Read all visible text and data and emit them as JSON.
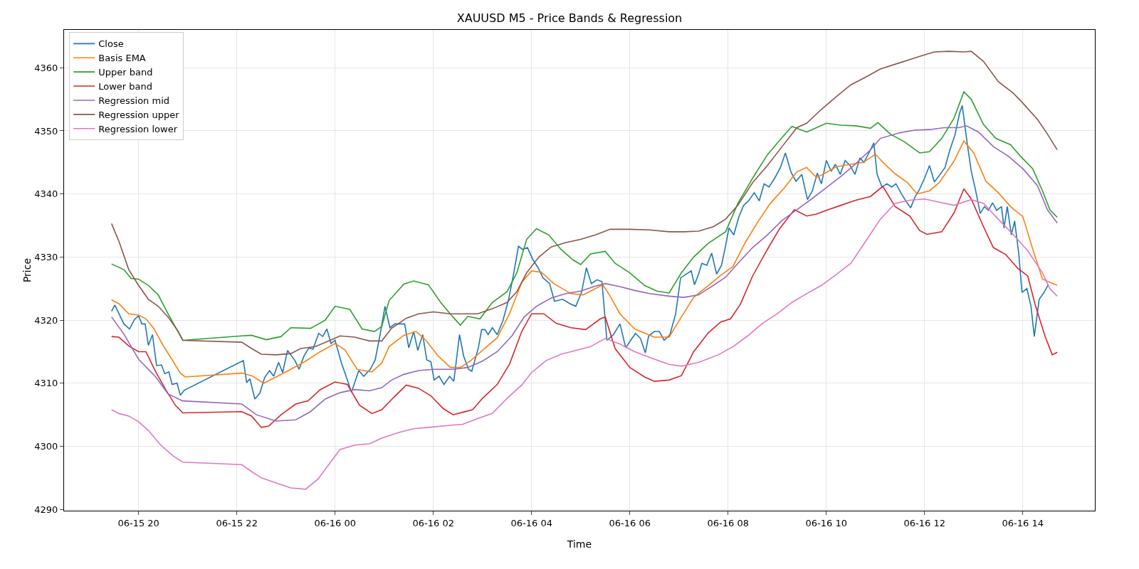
{
  "chart_data": {
    "type": "line",
    "title": "XAUUSD M5 - Price Bands & Regression",
    "xlabel": "Time",
    "ylabel": "Price",
    "xlim": [
      "--06-15T18:29",
      "--06-16T15:28"
    ],
    "ylim": [
      4289.8,
      4366
    ],
    "xticks": [
      {
        "value": "--06-15T20:00",
        "label": "06-15 20"
      },
      {
        "value": "--06-15T22:00",
        "label": "06-15 22"
      },
      {
        "value": "--06-16T00:00",
        "label": "06-16 00"
      },
      {
        "value": "--06-16T02:00",
        "label": "06-16 02"
      },
      {
        "value": "--06-16T04:00",
        "label": "06-16 04"
      },
      {
        "value": "--06-16T06:00",
        "label": "06-16 06"
      },
      {
        "value": "--06-16T08:00",
        "label": "06-16 08"
      },
      {
        "value": "--06-16T10:00",
        "label": "06-16 10"
      },
      {
        "value": "--06-16T12:00",
        "label": "06-16 12"
      },
      {
        "value": "--06-16T14:00",
        "label": "06-16 14"
      }
    ],
    "yticks": [
      4290,
      4300,
      4310,
      4320,
      4330,
      4340,
      4350,
      4360
    ],
    "grid": true,
    "legend": "top left",
    "marker": "none",
    "line_style": "solid",
    "series": [
      {
        "name": "Close",
        "color": "#1f77b4",
        "x": [
          "--06-15T19:27",
          "--06-15T19:31",
          "--06-15T19:42",
          "--06-15T19:49",
          "--06-15T19:55",
          "--06-15T20:00",
          "--06-15T20:04",
          "--06-15T20:08",
          "--06-15T20:12",
          "--06-15T20:17",
          "--06-15T20:22",
          "--06-15T20:28",
          "--06-15T20:32",
          "--06-15T20:37",
          "--06-15T20:41",
          "--06-15T20:47",
          "--06-15T20:51",
          "--06-15T20:56",
          "--06-15T22:08",
          "--06-15T22:12",
          "--06-15T22:16",
          "--06-15T22:22",
          "--06-15T22:28",
          "--06-15T22:34",
          "--06-15T22:40",
          "--06-15T22:45",
          "--06-15T22:51",
          "--06-15T22:56",
          "--06-15T23:02",
          "--06-15T23:07",
          "--06-15T23:11",
          "--06-15T23:16",
          "--06-15T23:22",
          "--06-15T23:28",
          "--06-15T23:33",
          "--06-15T23:40",
          "--06-15T23:45",
          "--06-15T23:50",
          "--06-15T23:55",
          "--06-16T00:00",
          "--06-16T00:08",
          "--06-16T00:14",
          "--06-16T00:20",
          "--06-16T00:29",
          "--06-16T00:35",
          "--06-16T00:43",
          "--06-16T00:49",
          "--06-16T00:55",
          "--06-16T01:01",
          "--06-16T01:07",
          "--06-16T01:13",
          "--06-16T01:19",
          "--06-16T01:25",
          "--06-16T01:30",
          "--06-16T01:36",
          "--06-16T01:41",
          "--06-16T01:47",
          "--06-16T01:52",
          "--06-16T01:57",
          "--06-16T02:01",
          "--06-16T02:07",
          "--06-16T02:13",
          "--06-16T02:20",
          "--06-16T02:25",
          "--06-16T02:32",
          "--06-16T02:37",
          "--06-16T02:43",
          "--06-16T02:47",
          "--06-16T02:55",
          "--06-16T02:59",
          "--06-16T03:03",
          "--06-16T03:07",
          "--06-16T03:12",
          "--06-16T03:18",
          "--06-16T03:25",
          "--06-16T03:32",
          "--06-16T03:38",
          "--06-16T03:44",
          "--06-16T03:49",
          "--06-16T03:55",
          "--06-16T04:02",
          "--06-16T04:08",
          "--06-16T04:14",
          "--06-16T04:22",
          "--06-16T04:28",
          "--06-16T04:38",
          "--06-16T04:47",
          "--06-16T04:54",
          "--06-16T05:01",
          "--06-16T05:07",
          "--06-16T05:13",
          "--06-16T05:20",
          "--06-16T05:26",
          "--06-16T05:32",
          "--06-16T05:40",
          "--06-16T05:48",
          "--06-16T05:55",
          "--06-16T06:01",
          "--06-16T06:07",
          "--06-16T06:13",
          "--06-16T06:19",
          "--06-16T06:23",
          "--06-16T06:30",
          "--06-16T06:36",
          "--06-16T06:42",
          "--06-16T06:49",
          "--06-16T06:56",
          "--06-16T07:02",
          "--06-16T07:09",
          "--06-16T07:15",
          "--06-16T07:19",
          "--06-16T07:24",
          "--06-16T07:28",
          "--06-16T07:34",
          "--06-16T07:40",
          "--06-16T07:46",
          "--06-16T07:52",
          "--06-16T07:57",
          "--06-16T08:01",
          "--06-16T08:07",
          "--06-16T08:13",
          "--06-16T08:19",
          "--06-16T08:25",
          "--06-16T08:32",
          "--06-16T08:38",
          "--06-16T08:44",
          "--06-16T08:50",
          "--06-16T08:57",
          "--06-16T09:04",
          "--06-16T09:10",
          "--06-16T09:17",
          "--06-16T09:23",
          "--06-16T09:30",
          "--06-16T09:37",
          "--06-16T09:43",
          "--06-16T09:49",
          "--06-16T09:54",
          "--06-16T10:00",
          "--06-16T10:06",
          "--06-16T10:11",
          "--06-16T10:17",
          "--06-16T10:23",
          "--06-16T10:29",
          "--06-16T10:35",
          "--06-16T10:41",
          "--06-16T10:46",
          "--06-16T10:52",
          "--06-16T10:58",
          "--06-16T11:02",
          "--06-16T11:08",
          "--06-16T11:14",
          "--06-16T11:20",
          "--06-16T11:25",
          "--06-16T11:31",
          "--06-16T11:37",
          "--06-16T11:43",
          "--06-16T11:49",
          "--06-16T11:53",
          "--06-16T12:00",
          "--06-16T12:06",
          "--06-16T12:12",
          "--06-16T12:19",
          "--06-16T12:25",
          "--06-16T12:31",
          "--06-16T12:37",
          "--06-16T12:43",
          "--06-16T12:46",
          "--06-16T12:52",
          "--06-16T12:57",
          "--06-16T13:02",
          "--06-16T13:08",
          "--06-16T13:13",
          "--06-16T13:18",
          "--06-16T13:23",
          "--06-16T13:28",
          "--06-16T13:34",
          "--06-16T13:37",
          "--06-16T13:41",
          "--06-16T13:46",
          "--06-16T13:50",
          "--06-16T13:55",
          "--06-16T13:59",
          "--06-16T14:05",
          "--06-16T14:10",
          "--06-16T14:14",
          "--06-16T14:20",
          "--06-16T14:26",
          "--06-16T14:31"
        ],
        "values": [
          4321.4,
          4322.4,
          4319.4,
          4318.6,
          4320.1,
          4320.7,
          4319.4,
          4319.4,
          4316,
          4317.7,
          4312.8,
          4312.9,
          4311.5,
          4311.8,
          4309.8,
          4310,
          4308.1,
          4308.9,
          4313.6,
          4310.1,
          4310.7,
          4307.5,
          4308.4,
          4310.9,
          4312,
          4311.1,
          4313.3,
          4311.7,
          4315.2,
          4314.3,
          4313.6,
          4312.2,
          4314.3,
          4315.6,
          4315.4,
          4317.9,
          4317.4,
          4318.6,
          4316.3,
          4316.8,
          4313.1,
          4310.9,
          4308.6,
          4312,
          4311.1,
          4312.2,
          4313.7,
          4317.7,
          4322.2,
          4318.8,
          4319.4,
          4319.4,
          4319.4,
          4315.6,
          4318.2,
          4315.2,
          4317.7,
          4313.7,
          4313.4,
          4310.5,
          4311.1,
          4309.8,
          4311.1,
          4310.3,
          4317.7,
          4314.3,
          4312.2,
          4311.9,
          4315.6,
          4318.5,
          4318.5,
          4317.7,
          4318.8,
          4317.7,
          4319.9,
          4323.3,
          4327.3,
          4331.7,
          4331.2,
          4331.5,
          4329.5,
          4328.3,
          4326.7,
          4325.8,
          4323,
          4323.3,
          4322.6,
          4322.2,
          4324.4,
          4328.3,
          4325.8,
          4326.4,
          4326.1,
          4316.8,
          4317.7,
          4319.4,
          4315.6,
          4316.8,
          4317.9,
          4317.1,
          4314.8,
          4317.5,
          4318.2,
          4318.2,
          4316.8,
          4317.7,
          4321,
          4326.7,
          4327.3,
          4327.8,
          4325.6,
          4327.3,
          4329,
          4328.7,
          4330.6,
          4327.3,
          4328.7,
          4331.8,
          4334.6,
          4333.5,
          4336.3,
          4338.2,
          4338.9,
          4340.2,
          4338.9,
          4341.6,
          4341.1,
          4342.5,
          4344.2,
          4346.5,
          4343.4,
          4342,
          4343.1,
          4339.1,
          4340.5,
          4343.3,
          4341.6,
          4345.3,
          4343.6,
          4344.7,
          4343.1,
          4345.3,
          4344.5,
          4343.1,
          4345.7,
          4345,
          4346.5,
          4348.1,
          4343.1,
          4341.1,
          4341.6,
          4341.1,
          4341.6,
          4340.2,
          4338.9,
          4337.8,
          4339.7,
          4340.5,
          4342.5,
          4344.5,
          4341.9,
          4343.1,
          4344.2,
          4347,
          4349.3,
          4352.9,
          4354,
          4348.1,
          4343.6,
          4340.8,
          4336.9,
          4338,
          4337.4,
          4338.6,
          4337.4,
          4338,
          4334.6,
          4338,
          4333.5,
          4335.7,
          4330.6,
          4324.4,
          4325,
          4322.2,
          4317.4,
          4323.3,
          4324.4,
          4325.6
        ]
      },
      {
        "name": "Basis EMA",
        "color": "#ff7f0e",
        "x": [
          "--06-15T19:27",
          "--06-15T19:36",
          "--06-15T19:48",
          "--06-15T20:00",
          "--06-15T20:09",
          "--06-15T20:18",
          "--06-15T20:30",
          "--06-15T20:42",
          "--06-15T20:51",
          "--06-15T20:57",
          "--06-15T22:06",
          "--06-15T22:18",
          "--06-15T22:33",
          "--06-15T22:48",
          "--06-15T23:06",
          "--06-15T23:24",
          "--06-15T23:42",
          "--06-16T00:00",
          "--06-16T00:12",
          "--06-16T00:27",
          "--06-16T00:45",
          "--06-16T00:57",
          "--06-16T01:06",
          "--06-16T01:24",
          "--06-16T01:39",
          "--06-16T01:51",
          "--06-16T02:06",
          "--06-16T02:21",
          "--06-16T02:33",
          "--06-16T02:45",
          "--06-16T03:00",
          "--06-16T03:18",
          "--06-16T03:33",
          "--06-16T03:48",
          "--06-16T04:00",
          "--06-16T04:12",
          "--06-16T04:27",
          "--06-16T04:48",
          "--06-16T05:03",
          "--06-16T05:18",
          "--06-16T05:27",
          "--06-16T05:36",
          "--06-16T05:48",
          "--06-16T06:06",
          "--06-16T06:30",
          "--06-16T06:48",
          "--06-16T07:03",
          "--06-16T07:18",
          "--06-16T07:36",
          "--06-16T07:51",
          "--06-16T08:06",
          "--06-16T08:21",
          "--06-16T08:36",
          "--06-16T08:51",
          "--06-16T09:09",
          "--06-16T09:24",
          "--06-16T09:36",
          "--06-16T09:48",
          "--06-16T10:00",
          "--06-16T10:12",
          "--06-16T10:30",
          "--06-16T10:45",
          "--06-16T11:00",
          "--06-16T11:09",
          "--06-16T11:24",
          "--06-16T11:39",
          "--06-16T11:51",
          "--06-16T12:06",
          "--06-16T12:18",
          "--06-16T12:36",
          "--06-16T12:48",
          "--06-16T13:00",
          "--06-16T13:15",
          "--06-16T13:30",
          "--06-16T13:45",
          "--06-16T14:00",
          "--06-16T14:12",
          "--06-16T14:24",
          "--06-16T14:42"
        ],
        "values": [
          4323.2,
          4322.6,
          4321,
          4320.8,
          4320.2,
          4318.8,
          4316,
          4313.5,
          4311.6,
          4311,
          4311.6,
          4311.2,
          4310,
          4311,
          4312.2,
          4313.5,
          4315,
          4316.3,
          4315.3,
          4312.2,
          4311.8,
          4313.2,
          4315.8,
          4317.6,
          4318.2,
          4316.8,
          4314.3,
          4312.5,
          4312.5,
          4313.5,
          4315.2,
          4317.2,
          4321,
          4326,
          4327.8,
          4327.6,
          4325.8,
          4324.2,
          4324,
          4325,
          4325.6,
          4323.8,
          4321,
          4318.6,
          4317.3,
          4317.3,
          4320.5,
          4323.6,
          4325.5,
          4327.1,
          4328.5,
          4332.3,
          4335.5,
          4338.4,
          4341,
          4343.5,
          4344.2,
          4342.6,
          4343.4,
          4344.3,
          4344.7,
          4345,
          4346.3,
          4345,
          4343.2,
          4341.8,
          4340,
          4340.5,
          4341.8,
          4345.2,
          4348.4,
          4346.5,
          4342,
          4340.2,
          4338,
          4336.4,
          4331.3,
          4326.5,
          4325.5
        ]
      },
      {
        "name": "Upper band",
        "color": "#2ca02c",
        "x": [
          "--06-15T19:27",
          "--06-15T19:42",
          "--06-15T19:51",
          "--06-15T20:00",
          "--06-15T20:12",
          "--06-15T20:24",
          "--06-15T20:36",
          "--06-15T20:54",
          "--06-15T22:06",
          "--06-15T22:18",
          "--06-15T22:36",
          "--06-15T22:54",
          "--06-15T23:06",
          "--06-15T23:30",
          "--06-15T23:48",
          "--06-16T00:00",
          "--06-16T00:18",
          "--06-16T00:33",
          "--06-16T00:48",
          "--06-16T00:57",
          "--06-16T01:06",
          "--06-16T01:24",
          "--06-16T01:36",
          "--06-16T01:54",
          "--06-16T02:09",
          "--06-16T02:24",
          "--06-16T02:33",
          "--06-16T02:42",
          "--06-16T02:57",
          "--06-16T03:12",
          "--06-16T03:30",
          "--06-16T03:42",
          "--06-16T03:54",
          "--06-16T04:06",
          "--06-16T04:21",
          "--06-16T04:36",
          "--06-16T04:51",
          "--06-16T05:00",
          "--06-16T05:12",
          "--06-16T05:30",
          "--06-16T05:42",
          "--06-16T06:00",
          "--06-16T06:18",
          "--06-16T06:33",
          "--06-16T06:48",
          "--06-16T07:03",
          "--06-16T07:18",
          "--06-16T07:36",
          "--06-16T07:57",
          "--06-16T08:12",
          "--06-16T08:30",
          "--06-16T08:48",
          "--06-16T09:03",
          "--06-16T09:18",
          "--06-16T09:36",
          "--06-16T09:48",
          "--06-16T10:00",
          "--06-16T10:18",
          "--06-16T10:36",
          "--06-16T10:54",
          "--06-16T11:03",
          "--06-16T11:18",
          "--06-16T11:36",
          "--06-16T11:54",
          "--06-16T12:06",
          "--06-16T12:21",
          "--06-16T12:36",
          "--06-16T12:48",
          "--06-16T12:57",
          "--06-16T13:12",
          "--06-16T13:27",
          "--06-16T13:45",
          "--06-16T13:57",
          "--06-16T14:12",
          "--06-16T14:24",
          "--06-16T14:33",
          "--06-16T14:42"
        ],
        "values": [
          4328.9,
          4328,
          4326.6,
          4326.5,
          4325.5,
          4324,
          4321,
          4316.8,
          4317.5,
          4317.6,
          4316.9,
          4317.4,
          4318.8,
          4318.7,
          4320,
          4322.2,
          4321.7,
          4318.6,
          4318.2,
          4319,
          4323.1,
          4325.7,
          4326.2,
          4325.6,
          4322.8,
          4320.5,
          4319.2,
          4320.6,
          4320.2,
          4322.8,
          4324.5,
          4327.5,
          4332.8,
          4334.5,
          4333.5,
          4331.2,
          4329.5,
          4328.8,
          4330.5,
          4330.9,
          4329,
          4327.5,
          4325.5,
          4324.6,
          4324.3,
          4327.5,
          4330,
          4332.2,
          4334,
          4338.5,
          4342.5,
          4346.2,
          4348.5,
          4350.7,
          4349.8,
          4350.5,
          4351.2,
          4350.9,
          4350.8,
          4350.4,
          4351.3,
          4349.5,
          4348.2,
          4346.5,
          4346.7,
          4348.8,
          4352,
          4356.2,
          4355,
          4351,
          4348.8,
          4347.8,
          4346,
          4344,
          4340.5,
          4337.5,
          4336.3
        ]
      },
      {
        "name": "Lower band",
        "color": "#d62728",
        "x": [
          "--06-15T19:27",
          "--06-15T19:36",
          "--06-15T19:48",
          "--06-15T20:00",
          "--06-15T20:09",
          "--06-15T20:21",
          "--06-15T20:33",
          "--06-15T20:45",
          "--06-15T20:54",
          "--06-15T22:06",
          "--06-15T22:18",
          "--06-15T22:30",
          "--06-15T22:39",
          "--06-15T22:54",
          "--06-15T23:12",
          "--06-15T23:27",
          "--06-15T23:42",
          "--06-16T00:00",
          "--06-16T00:15",
          "--06-16T00:30",
          "--06-16T00:45",
          "--06-16T00:57",
          "--06-16T01:12",
          "--06-16T01:27",
          "--06-16T01:42",
          "--06-16T01:57",
          "--06-16T02:12",
          "--06-16T02:24",
          "--06-16T02:36",
          "--06-16T02:48",
          "--06-16T03:00",
          "--06-16T03:18",
          "--06-16T03:33",
          "--06-16T03:48",
          "--06-16T04:00",
          "--06-16T04:15",
          "--06-16T04:30",
          "--06-16T04:48",
          "--06-16T05:06",
          "--06-16T05:24",
          "--06-16T05:30",
          "--06-16T05:42",
          "--06-16T06:00",
          "--06-16T06:18",
          "--06-16T06:30",
          "--06-16T06:48",
          "--06-16T07:03",
          "--06-16T07:18",
          "--06-16T07:36",
          "--06-16T07:51",
          "--06-16T08:03",
          "--06-16T08:15",
          "--06-16T08:30",
          "--06-16T08:48",
          "--06-16T09:03",
          "--06-16T09:21",
          "--06-16T09:36",
          "--06-16T09:48",
          "--06-16T10:00",
          "--06-16T10:18",
          "--06-16T10:36",
          "--06-16T10:54",
          "--06-16T11:09",
          "--06-16T11:24",
          "--06-16T11:42",
          "--06-16T11:54",
          "--06-16T12:03",
          "--06-16T12:21",
          "--06-16T12:36",
          "--06-16T12:48",
          "--06-16T12:57",
          "--06-16T13:12",
          "--06-16T13:24",
          "--06-16T13:39",
          "--06-16T13:54",
          "--06-16T14:06",
          "--06-16T14:15",
          "--06-16T14:27",
          "--06-16T14:36",
          "--06-16T14:42"
        ],
        "values": [
          4317.4,
          4317.3,
          4315.9,
          4315,
          4315,
          4311.8,
          4309,
          4306.5,
          4305.3,
          4305.5,
          4304.8,
          4303,
          4303.2,
          4305,
          4306.7,
          4307.2,
          4309,
          4310.2,
          4309.8,
          4306.5,
          4305.2,
          4305.8,
          4307.8,
          4309.7,
          4309.2,
          4308,
          4306,
          4305,
          4305.4,
          4305.8,
          4307.6,
          4309.8,
          4313,
          4318.2,
          4321,
          4321,
          4319.5,
          4318.8,
          4318.5,
          4320.2,
          4320.5,
          4315.5,
          4312.5,
          4311,
          4310.3,
          4310.5,
          4311.2,
          4315,
          4318,
          4319.7,
          4320.2,
          4322.5,
          4327,
          4331.2,
          4334.5,
          4337.5,
          4336.5,
          4336.8,
          4337.4,
          4338.2,
          4339,
          4339.6,
          4341.2,
          4338,
          4336.5,
          4334.2,
          4333.6,
          4334,
          4337,
          4340.8,
          4339.2,
          4334.8,
          4331.5,
          4330.4,
          4328.2,
          4327,
          4322.5,
          4317.5,
          4314.5,
          4314.9
        ]
      },
      {
        "name": "Regression mid",
        "color": "#9467bd",
        "x": [
          "--06-15T19:27",
          "--06-15T19:42",
          "--06-15T20:00",
          "--06-15T20:21",
          "--06-15T20:36",
          "--06-15T20:54",
          "--06-15T22:06",
          "--06-15T22:24",
          "--06-15T22:48",
          "--06-15T23:12",
          "--06-15T23:30",
          "--06-15T23:48",
          "--06-16T00:06",
          "--06-16T00:24",
          "--06-16T00:42",
          "--06-16T00:57",
          "--06-16T01:09",
          "--06-16T01:24",
          "--06-16T01:42",
          "--06-16T02:00",
          "--06-16T02:24",
          "--06-16T02:42",
          "--06-16T03:00",
          "--06-16T03:18",
          "--06-16T03:36",
          "--06-16T03:51",
          "--06-16T04:06",
          "--06-16T04:24",
          "--06-16T04:42",
          "--06-16T05:00",
          "--06-16T05:18",
          "--06-16T05:30",
          "--06-16T05:48",
          "--06-16T06:06",
          "--06-16T06:24",
          "--06-16T06:48",
          "--06-16T07:06",
          "--06-16T07:24",
          "--06-16T07:42",
          "--06-16T07:57",
          "--06-16T08:12",
          "--06-16T08:30",
          "--06-16T08:48",
          "--06-16T09:06",
          "--06-16T09:24",
          "--06-16T09:42",
          "--06-16T10:00",
          "--06-16T10:18",
          "--06-16T10:36",
          "--06-16T10:54",
          "--06-16T11:06",
          "--06-16T11:30",
          "--06-16T11:48",
          "--06-16T12:06",
          "--06-16T12:24",
          "--06-16T12:42",
          "--06-16T12:51",
          "--06-16T13:06",
          "--06-16T13:24",
          "--06-16T13:42",
          "--06-16T14:00",
          "--06-16T14:18",
          "--06-16T14:30",
          "--06-16T14:42"
        ],
        "values": [
          4320.5,
          4317.8,
          4313.8,
          4311,
          4308.3,
          4307.2,
          4306.7,
          4305,
          4304,
          4304.2,
          4305.5,
          4307.5,
          4308.5,
          4309,
          4308.8,
          4309.3,
          4310.5,
          4311.4,
          4312,
          4312.2,
          4312.2,
          4312.5,
          4313.5,
          4315,
          4317.5,
          4320.5,
          4322.2,
          4323.5,
          4324.2,
          4324.6,
          4325.4,
          4325.8,
          4325.3,
          4324.7,
          4324.2,
          4323.8,
          4323.6,
          4324,
          4325.5,
          4326.8,
          4329,
          4331.5,
          4333.5,
          4335.8,
          4337.5,
          4339.2,
          4341,
          4342.8,
          4344.8,
          4347,
          4348.8,
          4349.7,
          4350.1,
          4350.2,
          4350.5,
          4350.5,
          4350.8,
          4349.8,
          4347.5,
          4346,
          4344,
          4341.3,
          4337.5,
          4335.4
        ]
      },
      {
        "name": "Regression upper",
        "color": "#8c564b",
        "x": [
          "--06-15T19:27",
          "--06-15T19:36",
          "--06-15T19:48",
          "--06-15T20:00",
          "--06-15T20:12",
          "--06-15T20:24",
          "--06-15T20:36",
          "--06-15T20:48",
          "--06-15T20:54",
          "--06-15T22:06",
          "--06-15T22:18",
          "--06-15T22:30",
          "--06-15T22:48",
          "--06-15T23:06",
          "--06-15T23:18",
          "--06-15T23:36",
          "--06-15T23:54",
          "--06-16T00:06",
          "--06-16T00:24",
          "--06-16T00:42",
          "--06-16T00:57",
          "--06-16T01:09",
          "--06-16T01:27",
          "--06-16T01:42",
          "--06-16T02:00",
          "--06-16T02:21",
          "--06-16T02:42",
          "--06-16T02:54",
          "--06-16T03:12",
          "--06-16T03:30",
          "--06-16T03:42",
          "--06-16T03:54",
          "--06-16T04:09",
          "--06-16T04:24",
          "--06-16T04:42",
          "--06-16T05:00",
          "--06-16T05:18",
          "--06-16T05:36",
          "--06-16T06:00",
          "--06-16T06:24",
          "--06-16T06:48",
          "--06-16T07:06",
          "--06-16T07:24",
          "--06-16T07:42",
          "--06-16T07:57",
          "--06-16T08:12",
          "--06-16T08:30",
          "--06-16T08:48",
          "--06-16T09:06",
          "--06-16T09:24",
          "--06-16T09:36",
          "--06-16T09:54",
          "--06-16T10:12",
          "--06-16T10:30",
          "--06-16T10:48",
          "--06-16T11:06",
          "--06-16T11:30",
          "--06-16T11:54",
          "--06-16T12:12",
          "--06-16T12:30",
          "--06-16T12:48",
          "--06-16T12:57",
          "--06-16T13:12",
          "--06-16T13:30",
          "--06-16T13:48",
          "--06-16T14:00",
          "--06-16T14:18",
          "--06-16T14:30",
          "--06-16T14:42"
        ],
        "values": [
          4335.3,
          4332.5,
          4328,
          4325.5,
          4323.3,
          4322.2,
          4320.5,
          4318.3,
          4316.8,
          4316.5,
          4315.5,
          4314.6,
          4314.5,
          4314.7,
          4315.5,
          4315.8,
          4316.8,
          4317.5,
          4317.3,
          4316.7,
          4316.7,
          4318.7,
          4320.3,
          4321,
          4321.3,
          4321,
          4321,
          4321,
          4321.8,
          4322.8,
          4324.5,
          4327.5,
          4330,
          4331.6,
          4332.3,
          4332.8,
          4333.5,
          4334.4,
          4334.4,
          4334.3,
          4334,
          4334,
          4334.1,
          4334.8,
          4336,
          4338.2,
          4341.8,
          4344.5,
          4347.5,
          4350.5,
          4351.2,
          4353.4,
          4355.4,
          4357.3,
          4358.5,
          4359.8,
          4360.8,
          4361.8,
          4362.5,
          4362.6,
          4362.5,
          4362.6,
          4361,
          4357.8,
          4356,
          4354.4,
          4351.8,
          4349.5,
          4347
        ]
      },
      {
        "name": "Regression lower",
        "color": "#e377c2",
        "x": [
          "--06-15T19:27",
          "--06-15T19:36",
          "--06-15T19:48",
          "--06-15T20:00",
          "--06-15T20:12",
          "--06-15T20:27",
          "--06-15T20:42",
          "--06-15T20:54",
          "--06-15T22:06",
          "--06-15T22:18",
          "--06-15T22:30",
          "--06-15T22:48",
          "--06-15T23:06",
          "--06-15T23:24",
          "--06-15T23:39",
          "--06-15T23:54",
          "--06-16T00:06",
          "--06-16T00:24",
          "--06-16T00:42",
          "--06-16T00:57",
          "--06-16T01:18",
          "--06-16T01:36",
          "--06-16T01:54",
          "--06-16T02:18",
          "--06-16T02:36",
          "--06-16T02:54",
          "--06-16T03:12",
          "--06-16T03:30",
          "--06-16T03:48",
          "--06-16T04:00",
          "--06-16T04:18",
          "--06-16T04:36",
          "--06-16T04:54",
          "--06-16T05:12",
          "--06-16T05:30",
          "--06-16T05:48",
          "--06-16T06:06",
          "--06-16T06:30",
          "--06-16T06:48",
          "--06-16T07:03",
          "--06-16T07:24",
          "--06-16T07:48",
          "--06-16T08:06",
          "--06-16T08:24",
          "--06-16T08:42",
          "--06-16T09:00",
          "--06-16T09:18",
          "--06-16T09:36",
          "--06-16T09:54",
          "--06-16T10:12",
          "--06-16T10:30",
          "--06-16T10:48",
          "--06-16T11:06",
          "--06-16T11:24",
          "--06-16T11:42",
          "--06-16T12:00",
          "--06-16T12:18",
          "--06-16T12:36",
          "--06-16T12:57",
          "--06-16T13:12",
          "--06-16T13:30",
          "--06-16T13:48",
          "--06-16T14:06",
          "--06-16T14:24",
          "--06-16T14:33",
          "--06-16T14:42"
        ],
        "values": [
          4305.8,
          4305.2,
          4304.8,
          4303.9,
          4302.5,
          4300.2,
          4298.5,
          4297.5,
          4297.1,
          4296,
          4295,
          4294.2,
          4293.4,
          4293.2,
          4294.8,
          4297.4,
          4299.5,
          4300.2,
          4300.4,
          4301.3,
          4302.2,
          4302.8,
          4303,
          4303.3,
          4303.5,
          4304.4,
          4305.2,
          4307.6,
          4309.7,
          4311.7,
          4313.6,
          4314.6,
          4315.2,
          4315.8,
          4317.1,
          4316.2,
          4315,
          4313.8,
          4313,
          4312.7,
          4313.3,
          4314.5,
          4315.8,
          4317.5,
          4319.5,
          4321,
          4322.8,
          4324.2,
          4325.5,
          4327.2,
          4329,
          4332.5,
          4336,
          4338.5,
          4339,
          4339.2,
          4338.7,
          4338.2,
          4339.1,
          4338.5,
          4336,
          4333.6,
          4331,
          4327.5,
          4325,
          4323.8
        ]
      }
    ]
  }
}
